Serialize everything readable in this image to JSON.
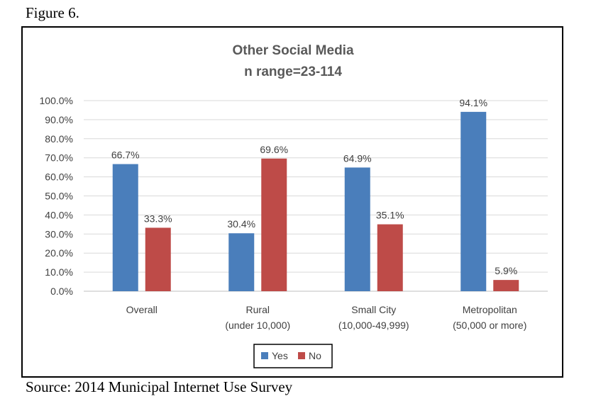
{
  "figure_label": "Figure 6.",
  "source_note": "Source: 2014 Municipal Internet Use Survey",
  "chart_data": {
    "type": "bar",
    "title": "Other Social Media",
    "subtitle": "n range=23-114",
    "categories": [
      [
        "Overall"
      ],
      [
        "Rural",
        "(under 10,000)"
      ],
      [
        "Small City",
        "(10,000-49,999)"
      ],
      [
        "Metropolitan",
        "(50,000 or more)"
      ]
    ],
    "series": [
      {
        "name": "Yes",
        "color": "#4a7ebb",
        "values": [
          66.7,
          30.4,
          64.9,
          94.1
        ],
        "labels": [
          "66.7%",
          "30.4%",
          "64.9%",
          "94.1%"
        ]
      },
      {
        "name": "No",
        "color": "#be4b48",
        "values": [
          33.3,
          69.6,
          35.1,
          5.9
        ],
        "labels": [
          "33.3%",
          "69.6%",
          "35.1%",
          "5.9%"
        ]
      }
    ],
    "ylim": [
      0,
      100
    ],
    "yticks": [
      "0.0%",
      "10.0%",
      "20.0%",
      "30.0%",
      "40.0%",
      "50.0%",
      "60.0%",
      "70.0%",
      "80.0%",
      "90.0%",
      "100.0%"
    ],
    "xlabel": "",
    "ylabel": "",
    "grid": true,
    "legend": "bottom-center"
  }
}
